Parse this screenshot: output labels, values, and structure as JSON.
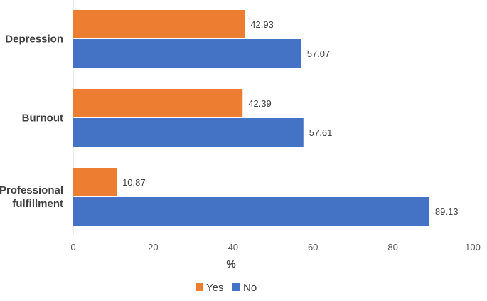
{
  "chart_data": {
    "type": "bar",
    "orientation": "horizontal",
    "categories": [
      [
        "Depression"
      ],
      [
        "Burnout"
      ],
      [
        "Professional",
        "fulfillment"
      ]
    ],
    "series": [
      {
        "name": "Yes",
        "color": "#ED7D31",
        "values": [
          42.93,
          42.39,
          10.87
        ],
        "labels": [
          "42.93",
          "42.39",
          "10.87"
        ]
      },
      {
        "name": "No",
        "color": "#4472C4",
        "values": [
          57.07,
          57.61,
          89.13
        ],
        "labels": [
          "57.07",
          "57.61",
          "89.13"
        ]
      }
    ],
    "xlabel": "%",
    "xlim": [
      0,
      100
    ],
    "xticks": [
      0,
      20,
      40,
      60,
      80,
      100
    ],
    "xtick_labels": [
      "0",
      "20",
      "40",
      "60",
      "80",
      "100"
    ],
    "grid": false,
    "legend_position": "bottom"
  }
}
